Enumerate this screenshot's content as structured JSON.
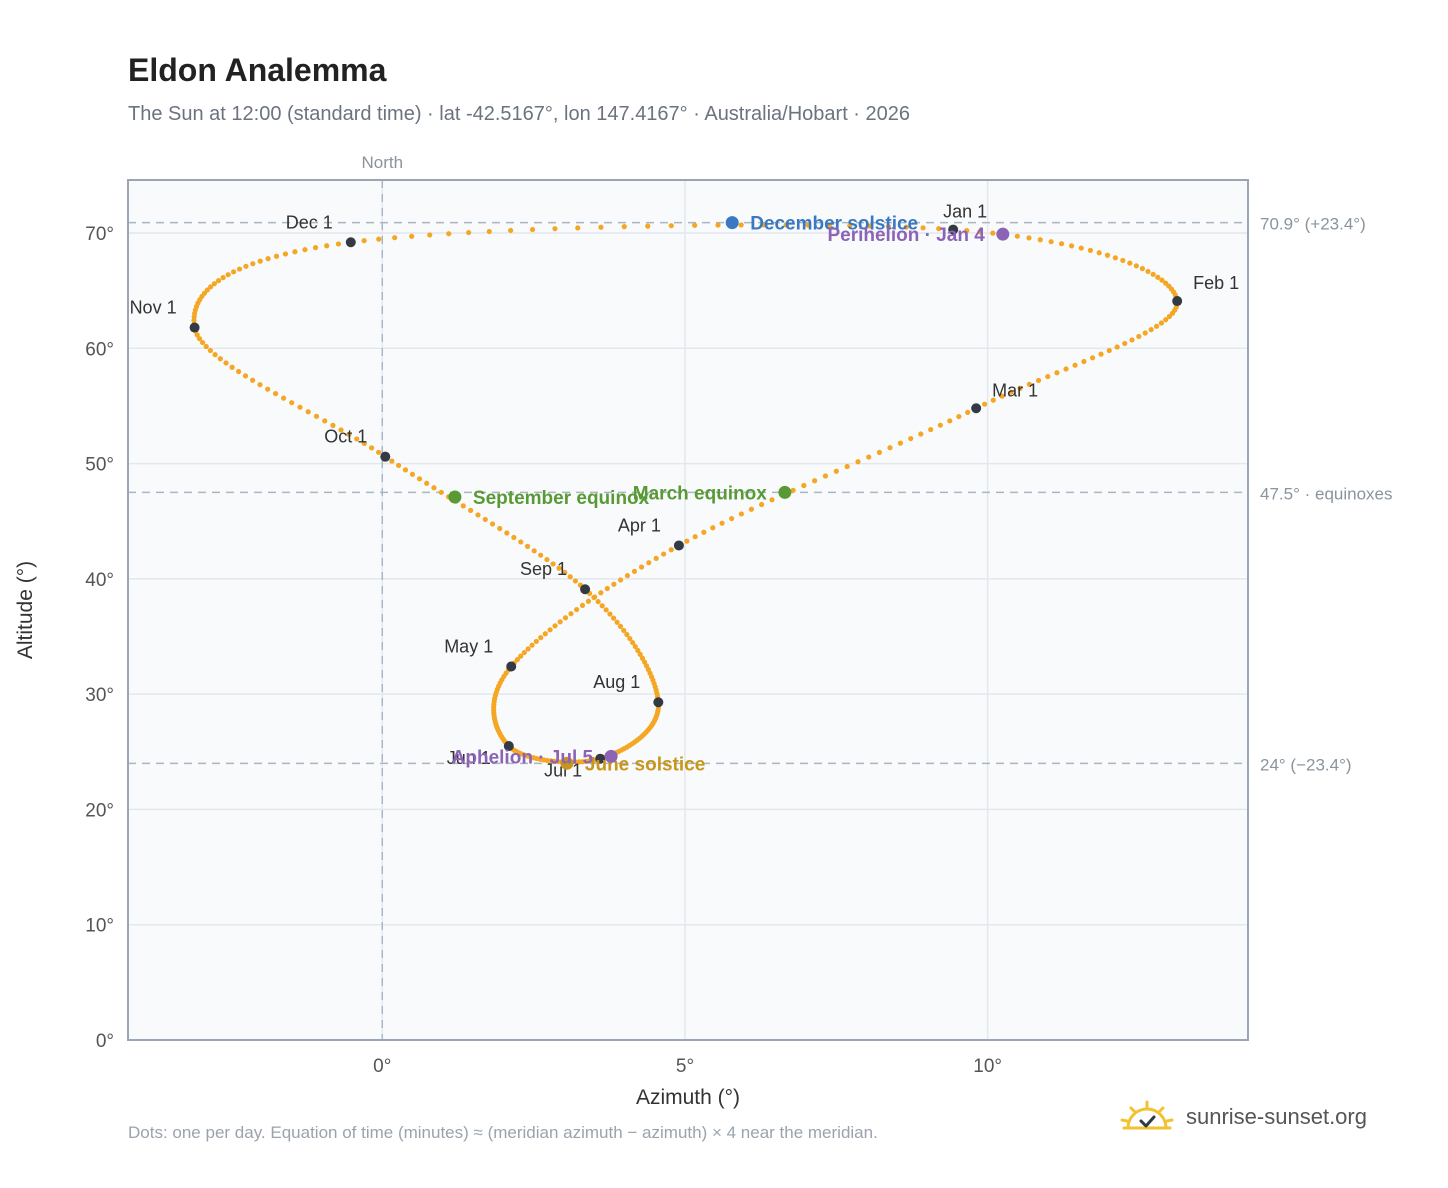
{
  "header": {
    "title": "Eldon Analemma",
    "subtitle": "The Sun at 12:00 (standard time) · lat -42.5167°, lon 147.4167° · Australia/Hobart · 2026"
  },
  "footer": {
    "note": "Dots: one per day. Equation of time (minutes) ≈ (meridian azimuth − azimuth) × 4 near the meridian.",
    "brand": "sunrise-sunset.org",
    "brand_icon": "sun-logo-icon"
  },
  "colors": {
    "curve": "#f5a623",
    "month_marker": "#333a44",
    "solstice_dec": "#3a78c2",
    "solstice_jun": "#c8961a",
    "equinox": "#5a9a35",
    "apsis": "#8d63b5",
    "plot_bg": "#f8fafc",
    "grid": "#e3e8ee",
    "frame": "#9aa6b5",
    "ref_line": "#a9b6c3"
  },
  "chart_data": {
    "type": "scatter",
    "title": "Eldon Analemma",
    "xlabel": "Azimuth (°)",
    "ylabel": "Altitude (°)",
    "xlim": [
      -4.2,
      14.3
    ],
    "ylim": [
      0,
      74.6
    ],
    "x_ticks": [
      {
        "v": 0,
        "label": "0°"
      },
      {
        "v": 5,
        "label": "5°"
      },
      {
        "v": 10,
        "label": "10°"
      }
    ],
    "y_ticks": [
      {
        "v": 0,
        "label": "0°"
      },
      {
        "v": 10,
        "label": "10°"
      },
      {
        "v": 20,
        "label": "20°"
      },
      {
        "v": 30,
        "label": "30°"
      },
      {
        "v": 40,
        "label": "40°"
      },
      {
        "v": 50,
        "label": "50°"
      },
      {
        "v": 60,
        "label": "60°"
      },
      {
        "v": 70,
        "label": "70°"
      }
    ],
    "grid": true,
    "north_line": {
      "x": 0,
      "label": "North"
    },
    "reference_lines": [
      {
        "y": 70.9,
        "label": "70.9° (+23.4°)"
      },
      {
        "y": 47.5,
        "label": "47.5° · equinoxes"
      },
      {
        "y": 24.0,
        "label": "24° (−23.4°)"
      }
    ],
    "curve_anchors": [
      {
        "date": "Jan 1",
        "x": 9.43,
        "y": 70.3
      },
      {
        "date": "Feb 1",
        "x": 13.13,
        "y": 64.1
      },
      {
        "date": "Mar 1",
        "x": 9.81,
        "y": 54.8
      },
      {
        "date": "Apr 1",
        "x": 4.9,
        "y": 42.9
      },
      {
        "date": "May 1",
        "x": 2.13,
        "y": 32.4
      },
      {
        "date": "Jun 1",
        "x": 2.09,
        "y": 25.5
      },
      {
        "date": "Jul 1",
        "x": 3.6,
        "y": 24.4
      },
      {
        "date": "Aug 1",
        "x": 4.56,
        "y": 29.3
      },
      {
        "date": "Sep 1",
        "x": 3.35,
        "y": 39.1
      },
      {
        "date": "Oct 1",
        "x": 0.05,
        "y": 50.6
      },
      {
        "date": "Nov 1",
        "x": -3.1,
        "y": 61.8
      },
      {
        "date": "Dec 1",
        "x": -0.52,
        "y": 69.2
      },
      {
        "date": "Dec 31",
        "x": 9.43,
        "y": 70.3
      }
    ],
    "month_markers": [
      {
        "label": "Jan 1",
        "x": 9.43,
        "y": 70.3,
        "pos": "above"
      },
      {
        "label": "Feb 1",
        "x": 13.13,
        "y": 64.1,
        "pos": "right"
      },
      {
        "label": "Mar 1",
        "x": 9.81,
        "y": 54.8,
        "pos": "right"
      },
      {
        "label": "Apr 1",
        "x": 4.9,
        "y": 42.9,
        "pos": "left"
      },
      {
        "label": "May 1",
        "x": 2.13,
        "y": 32.4,
        "pos": "left"
      },
      {
        "label": "Jun 1",
        "x": 2.09,
        "y": 25.5,
        "pos": "below-left"
      },
      {
        "label": "Jul 1",
        "x": 3.6,
        "y": 24.4,
        "pos": "below-left"
      },
      {
        "label": "Aug 1",
        "x": 4.56,
        "y": 29.3,
        "pos": "left"
      },
      {
        "label": "Sep 1",
        "x": 3.35,
        "y": 39.1,
        "pos": "left"
      },
      {
        "label": "Oct 1",
        "x": 0.05,
        "y": 50.6,
        "pos": "left"
      },
      {
        "label": "Nov 1",
        "x": -3.1,
        "y": 61.8,
        "pos": "left"
      },
      {
        "label": "Dec 1",
        "x": -0.52,
        "y": 69.2,
        "pos": "left"
      }
    ],
    "events": [
      {
        "label": "December solstice",
        "x": 5.78,
        "y": 70.9,
        "kind": "solstice_dec",
        "pos": "right"
      },
      {
        "label": "Perihelion · Jan 4",
        "x": 10.25,
        "y": 69.9,
        "kind": "apsis",
        "pos": "left"
      },
      {
        "label": "March equinox",
        "x": 6.65,
        "y": 47.5,
        "kind": "equinox",
        "pos": "left"
      },
      {
        "label": "September equinox",
        "x": 1.2,
        "y": 47.1,
        "kind": "equinox",
        "pos": "right"
      },
      {
        "label": "June solstice",
        "x": 3.05,
        "y": 24.0,
        "kind": "solstice_jun",
        "pos": "right"
      },
      {
        "label": "Aphelion · Jul 5",
        "x": 3.78,
        "y": 24.6,
        "kind": "apsis",
        "pos": "left"
      }
    ]
  }
}
